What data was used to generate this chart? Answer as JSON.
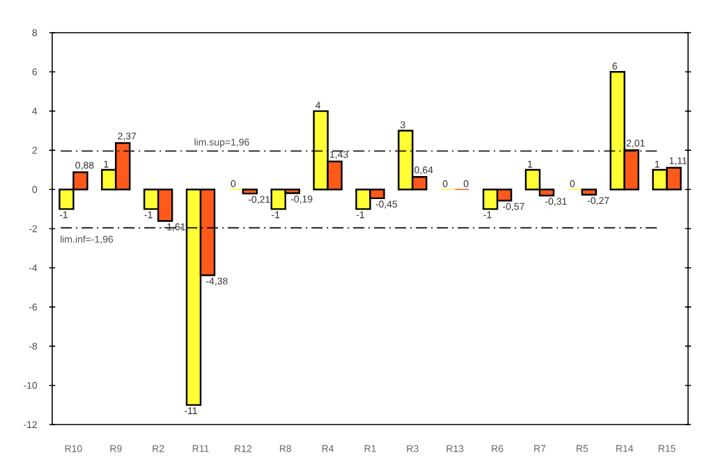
{
  "chart_data": {
    "type": "bar",
    "categories": [
      "R10",
      "R9",
      "R2",
      "R11",
      "R12",
      "R8",
      "R4",
      "R1",
      "R3",
      "R13",
      "R6",
      "R7",
      "R5",
      "R14",
      "R15"
    ],
    "series": [
      {
        "color": "#ffff33",
        "values": [
          -1,
          1,
          -1,
          -11,
          0,
          -1,
          4,
          -1,
          3,
          0,
          -1,
          1,
          0,
          6,
          1
        ],
        "value_labels": [
          "-1",
          "1",
          "-1",
          "-11",
          "0",
          "-1",
          "4",
          "-1",
          "3",
          "0",
          "-1",
          "1",
          "0",
          "6",
          "1"
        ]
      },
      {
        "color": "#ff5a1a",
        "values": [
          0.88,
          2.37,
          -1.61,
          -4.38,
          -0.21,
          -0.19,
          1.43,
          -0.45,
          0.64,
          0,
          -0.57,
          -0.31,
          -0.27,
          2.01,
          1.11
        ],
        "value_labels": [
          "0,88",
          "2,37",
          "-1,61",
          "-4,38",
          "-0,21",
          "-0,19",
          "1,43",
          "-0,45",
          "0,64",
          "0",
          "-0,57",
          "-0,31",
          "-0,27",
          "2,01",
          "1,11"
        ]
      }
    ],
    "ylim": [
      -12,
      8
    ],
    "yticks": [
      -12,
      -10,
      -8,
      -6,
      -4,
      -2,
      0,
      2,
      4,
      6,
      8
    ],
    "ref_lines": [
      {
        "axis": "y",
        "value": 1.96,
        "label": "lim.sup=1,96",
        "line_style": "dashed"
      },
      {
        "axis": "y",
        "value": -1.96,
        "label": "lim.inf=-1,96",
        "line_style": "dashed"
      }
    ]
  }
}
